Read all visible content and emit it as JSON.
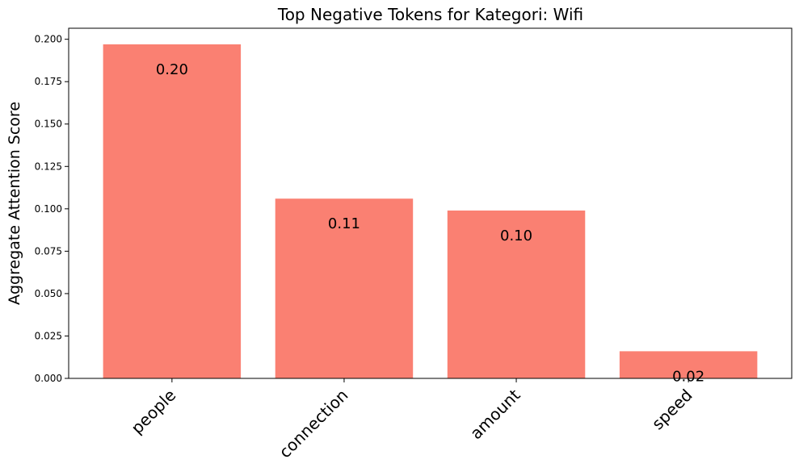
{
  "chart_data": {
    "type": "bar",
    "title": "Top Negative Tokens for Kategori: Wifi",
    "xlabel": "",
    "ylabel": "Aggregate Attention Score",
    "categories": [
      "people",
      "connection",
      "amount",
      "speed"
    ],
    "values": [
      0.197,
      0.106,
      0.099,
      0.016
    ],
    "data_labels": [
      "0.20",
      "0.11",
      "0.10",
      "0.02"
    ],
    "ylim": [
      0,
      0.2065
    ],
    "yticks": [
      0.0,
      0.025,
      0.05,
      0.075,
      0.1,
      0.125,
      0.15,
      0.175,
      0.2
    ],
    "ytick_labels": [
      "0.000",
      "0.025",
      "0.050",
      "0.075",
      "0.100",
      "0.125",
      "0.150",
      "0.175",
      "0.200"
    ],
    "bar_color": "#fa8072",
    "grid": false,
    "legend": "none"
  }
}
